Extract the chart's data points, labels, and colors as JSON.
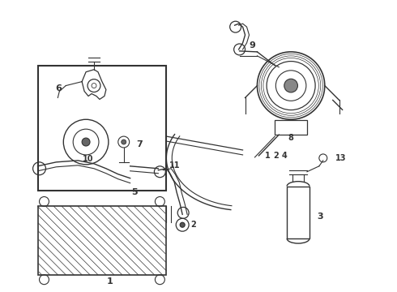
{
  "background_color": "#ffffff",
  "line_color": "#333333",
  "figsize": [
    4.9,
    3.6
  ],
  "dpi": 100
}
